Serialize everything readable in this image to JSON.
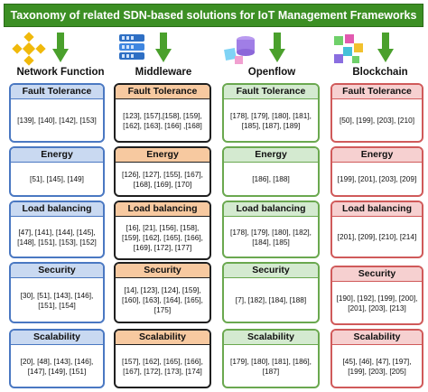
{
  "title": "Taxonomy of related SDN-based solutions for IoT Management Frameworks",
  "columns": [
    {
      "name": "Network Function",
      "icon": "binance-logo-icon",
      "cards": [
        {
          "title": "Fault Tolerance",
          "refs": "[139], [140], [142], [153]"
        },
        {
          "title": "Energy",
          "refs": "[51], [145], [149]"
        },
        {
          "title": "Load balancing",
          "refs": "[47], [141], [144], [145], [148], [151], [153], [152]"
        },
        {
          "title": "Security",
          "refs": "[30], [51], [143], [146], [151], [154]"
        },
        {
          "title": "Scalability",
          "refs": "[20], [48], [143], [146], [147], [149], [151]"
        }
      ]
    },
    {
      "name": "Middleware",
      "icon": "stacked-layers-icon",
      "cards": [
        {
          "title": "Fault Tolerance",
          "refs": "[123], [157],[158], [159], [162], [163], [166] ,[168]"
        },
        {
          "title": "Energy",
          "refs": "[126], [127], [155], [167], [168], [169], [170]"
        },
        {
          "title": "Load balancing",
          "refs": "[16], [21], [156], [158], [159], [162], [165], [166], [169], [172], [177]"
        },
        {
          "title": "Security",
          "refs": "[14], [123], [124], [159], [160], [163], [164], [165], [175]"
        },
        {
          "title": "Scalability",
          "refs": "[157], [162], [165], [166], [167], [172], [173], [174]"
        }
      ]
    },
    {
      "name": "Openflow",
      "icon": "database-cubes-icon",
      "cards": [
        {
          "title": "Fault Tolerance",
          "refs": "[178], [179], [180], [181], [185], [187], [189]"
        },
        {
          "title": "Energy",
          "refs": "[186], [188]"
        },
        {
          "title": "Load balancing",
          "refs": "[178], [179], [180], [182], [184], [185]"
        },
        {
          "title": "Security",
          "refs": "[7], [182], [184], [188]"
        },
        {
          "title": "Scalability",
          "refs": "[179], [180], [181], [186], [187]"
        }
      ]
    },
    {
      "name": "Blockchain",
      "icon": "blockchain-blocks-icon",
      "cards": [
        {
          "title": "Fault Tolerance",
          "refs": "[50], [199], [203], [210]"
        },
        {
          "title": "Energy",
          "refs": "[199], [201], [203], [209]"
        },
        {
          "title": "Load balancing",
          "refs": "[201], [209], [210], [214]"
        },
        {
          "title": "Security",
          "refs": "[190], [192], [199], [200], [201], [203], [213]"
        },
        {
          "title": "Scalability",
          "refs": "[45], [46], [47], [197], [199], [203], [205]"
        }
      ]
    }
  ]
}
